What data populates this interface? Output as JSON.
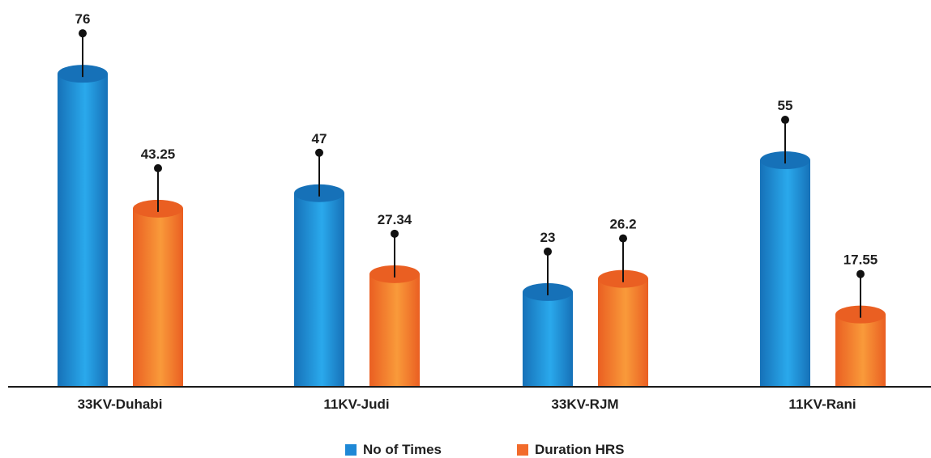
{
  "chart_data": {
    "type": "bar",
    "categories": [
      "33KV-Duhabi",
      "11KV-Judi",
      "33KV-RJM",
      "11KV-Rani"
    ],
    "series": [
      {
        "name": "No of Times",
        "values": [
          76,
          47,
          23,
          55
        ],
        "labels": [
          "76",
          "47",
          "23",
          "55"
        ],
        "color": "#1b95dc",
        "color_dark": "#1671b8",
        "color_light": "#2aa9ec"
      },
      {
        "name": "Duration HRS",
        "values": [
          43.25,
          27.34,
          26.2,
          17.55
        ],
        "labels": [
          "43.25",
          "27.34",
          "26.2",
          "17.55"
        ],
        "color": "#f47a28",
        "color_dark": "#ea5f22",
        "color_light": "#f99a3a"
      }
    ],
    "ylim": [
      0,
      80
    ],
    "grid": false,
    "legend_position": "bottom-center"
  }
}
